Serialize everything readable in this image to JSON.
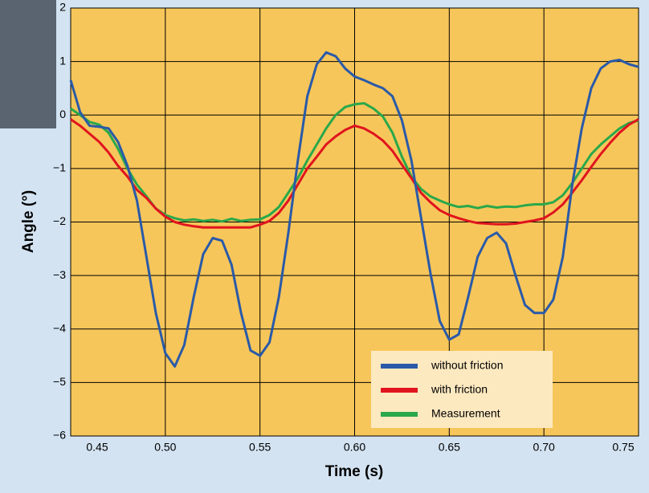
{
  "chart_data": {
    "type": "line",
    "x_label": "Time (s)",
    "y_label": "Angle (°)",
    "x": [
      0.45,
      0.455,
      0.46,
      0.465,
      0.47,
      0.475,
      0.48,
      0.485,
      0.49,
      0.495,
      0.5,
      0.505,
      0.51,
      0.515,
      0.52,
      0.525,
      0.53,
      0.535,
      0.54,
      0.545,
      0.55,
      0.555,
      0.56,
      0.565,
      0.57,
      0.575,
      0.58,
      0.585,
      0.59,
      0.595,
      0.6,
      0.605,
      0.61,
      0.615,
      0.62,
      0.625,
      0.63,
      0.635,
      0.64,
      0.645,
      0.65,
      0.655,
      0.66,
      0.665,
      0.67,
      0.675,
      0.68,
      0.685,
      0.69,
      0.695,
      0.7,
      0.705,
      0.71,
      0.715,
      0.72,
      0.725,
      0.73,
      0.735,
      0.74,
      0.745,
      0.75
    ],
    "series": [
      {
        "name": "without friction",
        "color": "#2a5aa8",
        "values": [
          0.65,
          0.05,
          -0.2,
          -0.22,
          -0.25,
          -0.5,
          -0.95,
          -1.6,
          -2.65,
          -3.7,
          -4.45,
          -4.7,
          -4.3,
          -3.4,
          -2.6,
          -2.3,
          -2.35,
          -2.8,
          -3.7,
          -4.4,
          -4.5,
          -4.25,
          -3.4,
          -2.2,
          -0.85,
          0.35,
          0.95,
          1.17,
          1.1,
          0.87,
          0.72,
          0.65,
          0.57,
          0.5,
          0.35,
          -0.1,
          -0.85,
          -1.9,
          -2.95,
          -3.85,
          -4.2,
          -4.1,
          -3.4,
          -2.65,
          -2.3,
          -2.2,
          -2.4,
          -3.0,
          -3.55,
          -3.7,
          -3.7,
          -3.45,
          -2.65,
          -1.3,
          -0.25,
          0.5,
          0.87,
          1.0,
          1.03,
          0.95,
          0.9
        ]
      },
      {
        "name": "with friction",
        "color": "#e0141e",
        "values": [
          -0.08,
          -0.2,
          -0.35,
          -0.5,
          -0.7,
          -0.95,
          -1.15,
          -1.4,
          -1.55,
          -1.75,
          -1.9,
          -2.0,
          -2.05,
          -2.08,
          -2.1,
          -2.1,
          -2.1,
          -2.1,
          -2.1,
          -2.1,
          -2.05,
          -1.98,
          -1.83,
          -1.6,
          -1.3,
          -1.0,
          -0.78,
          -0.55,
          -0.4,
          -0.28,
          -0.2,
          -0.25,
          -0.35,
          -0.48,
          -0.67,
          -0.93,
          -1.18,
          -1.45,
          -1.63,
          -1.78,
          -1.87,
          -1.93,
          -1.98,
          -2.02,
          -2.03,
          -2.04,
          -2.04,
          -2.03,
          -2.0,
          -1.97,
          -1.93,
          -1.82,
          -1.67,
          -1.45,
          -1.22,
          -0.97,
          -0.73,
          -0.52,
          -0.33,
          -0.18,
          -0.08
        ]
      },
      {
        "name": "Measurement",
        "color": "#2aa84a",
        "values": [
          0.12,
          0.0,
          -0.13,
          -0.18,
          -0.33,
          -0.63,
          -1.0,
          -1.3,
          -1.52,
          -1.75,
          -1.87,
          -1.93,
          -1.97,
          -1.95,
          -1.98,
          -1.96,
          -1.99,
          -1.94,
          -1.98,
          -1.96,
          -1.95,
          -1.87,
          -1.72,
          -1.45,
          -1.18,
          -0.85,
          -0.55,
          -0.25,
          0.0,
          0.15,
          0.2,
          0.22,
          0.12,
          -0.03,
          -0.33,
          -0.78,
          -1.15,
          -1.38,
          -1.52,
          -1.6,
          -1.67,
          -1.72,
          -1.7,
          -1.74,
          -1.7,
          -1.73,
          -1.71,
          -1.72,
          -1.69,
          -1.67,
          -1.67,
          -1.63,
          -1.5,
          -1.27,
          -1.0,
          -0.73,
          -0.55,
          -0.4,
          -0.25,
          -0.15,
          -0.1
        ]
      }
    ],
    "xlim": [
      0.45,
      0.75
    ],
    "xticks": [
      0.45,
      {
        "value": 0.5,
        "label": "0.50"
      },
      0.55,
      {
        "value": 0.6,
        "label": "0.60"
      },
      0.65,
      {
        "value": 0.7,
        "label": "0.70"
      },
      0.75
    ],
    "ylim": [
      -6,
      2
    ],
    "yticks": [
      {
        "value": -6,
        "label": "−6"
      },
      {
        "value": -5,
        "label": "−5"
      },
      {
        "value": -4,
        "label": "−4"
      },
      {
        "value": -3,
        "label": "−3"
      },
      {
        "value": -2,
        "label": "−2"
      },
      {
        "value": -1,
        "label": "−1"
      },
      0,
      1,
      2
    ],
    "grid": true,
    "legend": "lower right"
  }
}
